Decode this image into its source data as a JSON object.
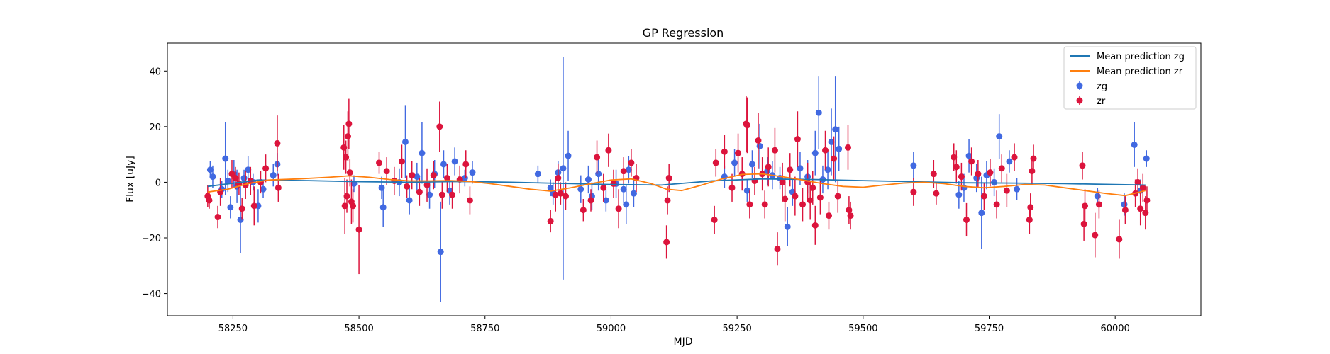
{
  "chart_data": {
    "type": "scatter",
    "title": "GP Regression",
    "xlabel": "MJD",
    "ylabel": "Flux [uJy]",
    "xlim": [
      58120,
      60170
    ],
    "ylim": [
      -48,
      50
    ],
    "xticks": [
      58250,
      58500,
      58750,
      59000,
      59250,
      59500,
      59750,
      60000
    ],
    "yticks": [
      -40,
      -20,
      0,
      20,
      40
    ],
    "grid": false,
    "legend_position": "top-right",
    "lines": [
      {
        "name": "Mean prediction zg",
        "color": "#1f77b4",
        "x": [
          58200,
          58300,
          58400,
          58500,
          58600,
          58700,
          58800,
          58900,
          59000,
          59100,
          59200,
          59300,
          59400,
          59500,
          59600,
          59700,
          59800,
          59900,
          60000,
          60060
        ],
        "y": [
          -1.5,
          0.8,
          0.6,
          0.2,
          0.0,
          0.3,
          0.0,
          -0.4,
          -0.8,
          -1.0,
          0.5,
          1.2,
          1.0,
          0.6,
          0.2,
          -0.2,
          -0.3,
          -0.5,
          -0.8,
          -1.0
        ]
      },
      {
        "name": "Mean prediction zr",
        "color": "#ff7f0e",
        "x": [
          58200,
          58240,
          58280,
          58320,
          58380,
          58440,
          58480,
          58520,
          58560,
          58600,
          58640,
          58680,
          58720,
          58760,
          58800,
          58840,
          58880,
          58920,
          58960,
          59000,
          59040,
          59080,
          59110,
          59140,
          59180,
          59220,
          59260,
          59300,
          59340,
          59380,
          59420,
          59460,
          59500,
          59540,
          59580,
          59620,
          59660,
          59700,
          59740,
          59780,
          59820,
          59860,
          59900,
          59940,
          59980,
          60020,
          60060
        ],
        "y": [
          -3.5,
          -2.5,
          -0.5,
          0.8,
          1.2,
          1.8,
          2.3,
          1.8,
          1.0,
          0.5,
          0.5,
          0.6,
          0.3,
          -0.5,
          -1.5,
          -2.5,
          -3.2,
          -2.0,
          -0.5,
          0.8,
          1.2,
          -0.5,
          -2.5,
          -3.0,
          -1.0,
          1.2,
          2.8,
          3.0,
          2.0,
          0.8,
          -0.5,
          -1.5,
          -1.8,
          -1.0,
          -0.3,
          0.0,
          -0.5,
          -1.5,
          -2.0,
          -1.5,
          -0.8,
          -1.0,
          -2.0,
          -3.0,
          -4.0,
          -4.8,
          -3.0
        ]
      }
    ],
    "series": [
      {
        "name": "zg",
        "color": "#4169e1",
        "points": [
          [
            58205,
            4.5,
            3
          ],
          [
            58210,
            2.0,
            4
          ],
          [
            58228,
            -2.5,
            3
          ],
          [
            58235,
            8.5,
            13
          ],
          [
            58240,
            0.5,
            4
          ],
          [
            58245,
            -9.0,
            4
          ],
          [
            58252,
            3.0,
            5
          ],
          [
            58258,
            -1.5,
            6
          ],
          [
            58265,
            -13.5,
            12
          ],
          [
            58272,
            1.5,
            3
          ],
          [
            58280,
            4.5,
            5
          ],
          [
            58290,
            0.0,
            3
          ],
          [
            58300,
            -8.5,
            6
          ],
          [
            58310,
            -2.5,
            3
          ],
          [
            58330,
            2.5,
            4
          ],
          [
            58338,
            6.5,
            4
          ],
          [
            58490,
            -0.5,
            3
          ],
          [
            58545,
            -2.0,
            4
          ],
          [
            58548,
            -9.0,
            7
          ],
          [
            58580,
            0.0,
            5
          ],
          [
            58592,
            14.5,
            13
          ],
          [
            58600,
            -6.5,
            5
          ],
          [
            58615,
            2.0,
            5
          ],
          [
            58625,
            10.5,
            11
          ],
          [
            58640,
            -4.5,
            5
          ],
          [
            58650,
            3.0,
            5
          ],
          [
            58662,
            -25.0,
            18
          ],
          [
            58668,
            6.5,
            5
          ],
          [
            58680,
            -3.0,
            5
          ],
          [
            58690,
            7.5,
            5
          ],
          [
            58710,
            1.5,
            3
          ],
          [
            58725,
            3.5,
            4
          ],
          [
            58855,
            3.0,
            3
          ],
          [
            58880,
            -2.0,
            3
          ],
          [
            58885,
            -4.0,
            4
          ],
          [
            58895,
            3.5,
            4
          ],
          [
            58905,
            5.0,
            40
          ],
          [
            58915,
            9.5,
            9
          ],
          [
            58940,
            -2.5,
            5
          ],
          [
            58955,
            1.0,
            5
          ],
          [
            58962,
            -5.0,
            5
          ],
          [
            58975,
            3.0,
            6
          ],
          [
            58990,
            -6.5,
            4
          ],
          [
            59010,
            -0.5,
            5
          ],
          [
            59025,
            -2.5,
            5
          ],
          [
            59030,
            -8.0,
            7
          ],
          [
            59035,
            4.5,
            5
          ],
          [
            59045,
            -4.0,
            5
          ],
          [
            59225,
            2.0,
            4
          ],
          [
            59245,
            7.0,
            5
          ],
          [
            59270,
            -3.0,
            4
          ],
          [
            59280,
            6.5,
            5
          ],
          [
            59295,
            13.0,
            8
          ],
          [
            59310,
            4.0,
            5
          ],
          [
            59320,
            2.5,
            5
          ],
          [
            59335,
            1.5,
            4
          ],
          [
            59350,
            -16.0,
            7
          ],
          [
            59360,
            -3.5,
            5
          ],
          [
            59375,
            5.0,
            6
          ],
          [
            59390,
            2.0,
            6
          ],
          [
            59405,
            10.5,
            8
          ],
          [
            59412,
            25.0,
            13
          ],
          [
            59420,
            1.0,
            5
          ],
          [
            59430,
            4.5,
            7
          ],
          [
            59437,
            14.5,
            12
          ],
          [
            59445,
            19.0,
            19
          ],
          [
            59452,
            12.0,
            8
          ],
          [
            59600,
            6.0,
            5
          ],
          [
            59690,
            -4.5,
            5
          ],
          [
            59700,
            -2.0,
            5
          ],
          [
            59710,
            9.5,
            6
          ],
          [
            59725,
            1.5,
            5
          ],
          [
            59735,
            -11.0,
            13
          ],
          [
            59745,
            2.5,
            5
          ],
          [
            59760,
            0.0,
            5
          ],
          [
            59770,
            16.5,
            8
          ],
          [
            59790,
            7.5,
            4
          ],
          [
            59805,
            -2.5,
            4
          ],
          [
            59965,
            -5.0,
            3
          ],
          [
            60018,
            -8.0,
            4
          ],
          [
            60038,
            13.5,
            8
          ],
          [
            60050,
            -3.0,
            4
          ],
          [
            60062,
            8.5,
            3
          ]
        ]
      },
      {
        "name": "zr",
        "color": "#dc143c",
        "points": [
          [
            58200,
            -5.0,
            4
          ],
          [
            58203,
            -6.5,
            3
          ],
          [
            58220,
            -12.5,
            4
          ],
          [
            58225,
            -3.5,
            5
          ],
          [
            58248,
            3.0,
            5
          ],
          [
            58255,
            1.5,
            4
          ],
          [
            58262,
            -0.5,
            4
          ],
          [
            58268,
            -9.5,
            4
          ],
          [
            58275,
            -1.0,
            5
          ],
          [
            58285,
            0.5,
            5
          ],
          [
            58292,
            -8.5,
            7
          ],
          [
            58305,
            0.0,
            4
          ],
          [
            58315,
            5.0,
            5
          ],
          [
            58338,
            14.0,
            10
          ],
          [
            58340,
            -2.0,
            5
          ],
          [
            58470,
            12.5,
            8
          ],
          [
            58472,
            -8.5,
            10
          ],
          [
            58474,
            9.0,
            6
          ],
          [
            58476,
            -5.0,
            6
          ],
          [
            58478,
            16.5,
            9
          ],
          [
            58480,
            21.0,
            9
          ],
          [
            58482,
            3.5,
            5
          ],
          [
            58485,
            -7.0,
            8
          ],
          [
            58488,
            -8.5,
            6
          ],
          [
            58500,
            -17.0,
            16
          ],
          [
            58540,
            7.0,
            4
          ],
          [
            58555,
            4.0,
            5
          ],
          [
            58570,
            0.5,
            5
          ],
          [
            58585,
            7.5,
            6
          ],
          [
            58595,
            -1.5,
            4
          ],
          [
            58605,
            2.5,
            5
          ],
          [
            58620,
            -3.5,
            5
          ],
          [
            58635,
            -1.0,
            6
          ],
          [
            58648,
            2.5,
            5
          ],
          [
            58660,
            20.0,
            9
          ],
          [
            58665,
            -4.5,
            5
          ],
          [
            58675,
            1.5,
            5
          ],
          [
            58685,
            -4.5,
            5
          ],
          [
            58700,
            1.0,
            5
          ],
          [
            58712,
            6.5,
            5
          ],
          [
            58720,
            -6.5,
            5
          ],
          [
            58880,
            -14.0,
            4
          ],
          [
            58890,
            -4.5,
            6
          ],
          [
            58895,
            1.5,
            5
          ],
          [
            58900,
            -4.0,
            4
          ],
          [
            58910,
            -5.0,
            5
          ],
          [
            58945,
            -10.0,
            4
          ],
          [
            58960,
            -6.5,
            4
          ],
          [
            58972,
            9.0,
            6
          ],
          [
            58985,
            -2.0,
            5
          ],
          [
            58995,
            11.5,
            6
          ],
          [
            59005,
            -0.5,
            5
          ],
          [
            59015,
            -9.5,
            7
          ],
          [
            59025,
            4.0,
            5
          ],
          [
            59040,
            7.0,
            5
          ],
          [
            59050,
            1.5,
            5
          ],
          [
            59110,
            -21.5,
            6
          ],
          [
            59112,
            -6.5,
            5
          ],
          [
            59115,
            1.5,
            5
          ],
          [
            59205,
            -13.5,
            5
          ],
          [
            59208,
            7.0,
            5
          ],
          [
            59225,
            11.0,
            6
          ],
          [
            59240,
            -2.0,
            5
          ],
          [
            59252,
            10.5,
            7
          ],
          [
            59260,
            3.0,
            6
          ],
          [
            59268,
            21.0,
            10
          ],
          [
            59270,
            20.5,
            10
          ],
          [
            59275,
            -8.0,
            5
          ],
          [
            59285,
            0.5,
            5
          ],
          [
            59292,
            15.0,
            10
          ],
          [
            59300,
            3.0,
            6
          ],
          [
            59305,
            -8.0,
            5
          ],
          [
            59312,
            5.5,
            7
          ],
          [
            59325,
            11.5,
            8
          ],
          [
            59330,
            -24.0,
            6
          ],
          [
            59340,
            0.0,
            7
          ],
          [
            59345,
            -6.0,
            8
          ],
          [
            59355,
            4.5,
            6
          ],
          [
            59365,
            -5.0,
            7
          ],
          [
            59370,
            15.5,
            10
          ],
          [
            59380,
            -8.0,
            6
          ],
          [
            59390,
            0.0,
            7
          ],
          [
            59395,
            -6.5,
            7
          ],
          [
            59400,
            -2.0,
            6
          ],
          [
            59405,
            -15.5,
            7
          ],
          [
            59415,
            -5.5,
            6
          ],
          [
            59425,
            11.5,
            7
          ],
          [
            59432,
            -12.0,
            5
          ],
          [
            59442,
            8.5,
            8
          ],
          [
            59450,
            -5.0,
            6
          ],
          [
            59470,
            12.5,
            8
          ],
          [
            59472,
            -10.0,
            5
          ],
          [
            59475,
            -12.0,
            5
          ],
          [
            59600,
            -3.5,
            5
          ],
          [
            59640,
            3.0,
            5
          ],
          [
            59645,
            -4.0,
            4
          ],
          [
            59680,
            9.0,
            5
          ],
          [
            59685,
            5.5,
            6
          ],
          [
            59695,
            2.0,
            5
          ],
          [
            59705,
            -13.5,
            6
          ],
          [
            59715,
            7.5,
            5
          ],
          [
            59728,
            3.0,
            5
          ],
          [
            59740,
            -5.0,
            5
          ],
          [
            59752,
            3.5,
            5
          ],
          [
            59765,
            -8.0,
            5
          ],
          [
            59775,
            5.0,
            5
          ],
          [
            59785,
            -3.0,
            6
          ],
          [
            59800,
            9.0,
            5
          ],
          [
            59830,
            -13.5,
            5
          ],
          [
            59832,
            -9.0,
            5
          ],
          [
            59835,
            4.0,
            5
          ],
          [
            59838,
            8.5,
            5
          ],
          [
            59935,
            6.0,
            5
          ],
          [
            59938,
            -15.0,
            6
          ],
          [
            59940,
            -8.5,
            6
          ],
          [
            59960,
            -19.0,
            8
          ],
          [
            59968,
            -8.0,
            5
          ],
          [
            60008,
            -20.5,
            7
          ],
          [
            60020,
            -10.0,
            5
          ],
          [
            60040,
            -4.0,
            5
          ],
          [
            60045,
            0.0,
            5
          ],
          [
            60050,
            -9.5,
            6
          ],
          [
            60055,
            -2.0,
            5
          ],
          [
            60060,
            -11.0,
            6
          ],
          [
            60063,
            -6.5,
            5
          ]
        ]
      }
    ]
  }
}
